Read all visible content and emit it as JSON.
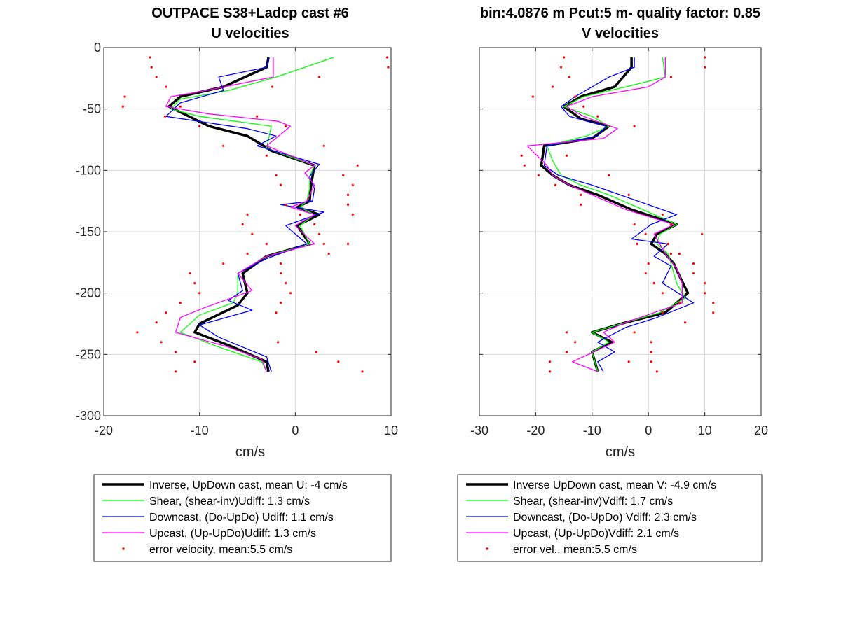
{
  "figure": {
    "left_title_line1": "OUTPACE S38+Ladcp cast #6",
    "right_title_line1": "bin:4.0876 m  Pcut:5 m- quality factor:  0.85"
  },
  "colors": {
    "inverse": "#000000",
    "shear": "#00ff00",
    "downcast": "#0000ff",
    "upcast": "#ff00ff",
    "error": "#ff0000",
    "grid": "#d9d9d9"
  },
  "chart_data": [
    {
      "type": "line",
      "title": "U velocities",
      "xlabel": "cm/s",
      "ylabel": "",
      "xlim": [
        -20,
        10
      ],
      "ylim": [
        -300,
        0
      ],
      "xticks": [
        -20,
        -10,
        0,
        10
      ],
      "yticks": [
        -300,
        -250,
        -200,
        -150,
        -100,
        -50,
        0
      ],
      "grid": true,
      "legend_position": "below",
      "series": [
        {
          "name": "Inverse, UpDown cast, mean U:  -4 cm/s",
          "role": "inverse",
          "x": [
            -2.8,
            -3.0,
            -7.5,
            -12.0,
            -13.2,
            -9.0,
            -5.0,
            -3.3,
            -2.5,
            2.0,
            1.8,
            1.6,
            1.5,
            0.2,
            2.5,
            0.2,
            1.5,
            -3.0,
            -5.5,
            -5.0,
            -6.0,
            -10.0,
            -10.5,
            -6.5,
            -3.0,
            -2.8
          ],
          "y": [
            -8,
            -16,
            -32,
            -40,
            -48,
            -64,
            -72,
            -80,
            -84,
            -96,
            -105,
            -115,
            -125,
            -130,
            -136,
            -145,
            -160,
            -170,
            -184,
            -200,
            -210,
            -225,
            -232,
            -244,
            -256,
            -264
          ]
        },
        {
          "name": "Shear, (shear-inv)Udiff:  1.3 cm/s",
          "role": "shear",
          "x": [
            4.0,
            1.0,
            -2.0,
            -7.0,
            -12.0,
            -13.0,
            -10.0,
            -2.5,
            -3.0,
            2.0,
            1.5,
            1.5,
            1.2,
            0.5,
            2.0,
            0.5,
            1.5,
            -3.0,
            -6.0,
            -6.0,
            -6.5,
            -10.0,
            -12.0,
            -8.0,
            -3.5,
            -3.0
          ],
          "y": [
            -8,
            -16,
            -24,
            -35,
            -42,
            -50,
            -56,
            -64,
            -82,
            -96,
            -105,
            -115,
            -125,
            -130,
            -136,
            -145,
            -160,
            -170,
            -184,
            -200,
            -208,
            -218,
            -232,
            -244,
            -256,
            -264
          ]
        },
        {
          "name": "Downcast, (Do-UpDo) Udiff:  1.1 cm/s",
          "role": "downcast",
          "x": [
            -2.8,
            -3.0,
            -8.0,
            -7.5,
            -12.0,
            -13.5,
            -5.0,
            -2.0,
            -4.0,
            2.5,
            1.5,
            2.0,
            1.8,
            -1.5,
            3.0,
            -1.0,
            1.2,
            -3.0,
            -6.0,
            -5.5,
            -7.0,
            -4.5,
            -10.0,
            -8.0,
            -3.0,
            -2.5
          ],
          "y": [
            -8,
            -16,
            -24,
            -35,
            -45,
            -56,
            -66,
            -72,
            -80,
            -95,
            -105,
            -115,
            -125,
            -128,
            -134,
            -145,
            -160,
            -172,
            -184,
            -198,
            -206,
            -214,
            -226,
            -236,
            -252,
            -264
          ]
        },
        {
          "name": "Upcast, (Up-UpDo)Udiff:  1.3 cm/s",
          "role": "upcast",
          "x": [
            -2.3,
            -2.3,
            -10.0,
            -13.0,
            -13.5,
            -9.0,
            -1.8,
            -0.5,
            -3.0,
            2.0,
            1.0,
            2.0,
            1.2,
            -0.5,
            2.0,
            0.0,
            2.0,
            -3.0,
            -6.0,
            -4.5,
            -9.5,
            -12.0,
            -12.5,
            -7.0,
            -3.5,
            -3.0
          ],
          "y": [
            -8,
            -24,
            -36,
            -40,
            -48,
            -54,
            -60,
            -64,
            -80,
            -96,
            -102,
            -112,
            -125,
            -130,
            -136,
            -145,
            -160,
            -170,
            -184,
            -198,
            -212,
            -220,
            -232,
            -244,
            -254,
            -264
          ]
        },
        {
          "name": "error velocity, mean:5.5 cm/s",
          "role": "error",
          "type": "scatter",
          "x": [
            -15.2,
            9.6,
            -15.0,
            9.7,
            -14.5,
            2.5,
            -13.5,
            -17.8,
            -2.4,
            -18.0,
            -12.0,
            -13.6,
            -4.0,
            -10.0,
            -1.0,
            -7.5,
            3.0,
            -3.0,
            6.5,
            -2.0,
            5.0,
            6.0,
            -1.5,
            5.5,
            -1.0,
            5.5,
            0.5,
            -5.0,
            6.0,
            -5.5,
            2.0,
            2.5,
            -4.5,
            3.0,
            -3.0,
            5.5,
            -5.0,
            3.5,
            -7.5,
            -1.5,
            -11.0,
            -1.5,
            -10.5,
            -1.0,
            -10.0,
            -0.5,
            -12.0,
            -1.5,
            -13.5,
            -2.0,
            -14.5,
            -16.5,
            -14.0,
            -1.8,
            -12.5,
            2.2,
            -10.5,
            4.5,
            -12.5,
            7.0
          ],
          "y": [
            -8,
            -8,
            -16,
            -16,
            -24,
            -24,
            -32,
            -40,
            -32,
            -48,
            -48,
            -56,
            -56,
            -64,
            -64,
            -80,
            -80,
            -88,
            -96,
            -104,
            -104,
            -112,
            -112,
            -120,
            -128,
            -128,
            -136,
            -136,
            -136,
            -144,
            -144,
            -152,
            -152,
            -160,
            -160,
            -160,
            -168,
            -168,
            -176,
            -176,
            -184,
            -184,
            -192,
            -192,
            -200,
            -200,
            -208,
            -208,
            -216,
            -216,
            -224,
            -232,
            -240,
            -240,
            -248,
            -248,
            -256,
            -256,
            -264,
            -264
          ]
        }
      ]
    },
    {
      "type": "line",
      "title": "V velocities",
      "xlabel": "cm/s",
      "ylabel": "",
      "xlim": [
        -30,
        20
      ],
      "ylim": [
        -300,
        0
      ],
      "xticks": [
        -30,
        -20,
        -10,
        0,
        10,
        20
      ],
      "yticks": [
        -300,
        -250,
        -200,
        -150,
        -100,
        -50,
        0
      ],
      "grid": true,
      "legend_position": "below",
      "series": [
        {
          "name": "Inverse UpDown cast, mean V:  -4.9 cm/s",
          "role": "inverse",
          "x": [
            -3.0,
            -3.0,
            -6.0,
            -12.0,
            -15.0,
            -12.0,
            -7.0,
            -10.0,
            -18.5,
            -19.0,
            -17.0,
            -14.0,
            -9.0,
            -3.0,
            5.0,
            1.5,
            0.5,
            3.0,
            4.5,
            5.5,
            7.0,
            3.0,
            -4.0,
            -10.0,
            -6.5,
            -10.0,
            -9.0
          ],
          "y": [
            -8,
            -16,
            -32,
            -40,
            -48,
            -58,
            -64,
            -74,
            -80,
            -96,
            -104,
            -112,
            -120,
            -132,
            -144,
            -152,
            -160,
            -168,
            -176,
            -186,
            -200,
            -216,
            -224,
            -232,
            -240,
            -248,
            -264
          ]
        },
        {
          "name": "Shear, (shear-inv)Vdiff:  1.7 cm/s",
          "role": "shear",
          "x": [
            2.5,
            3.0,
            -4.0,
            -11.5,
            -15.0,
            -10.0,
            -7.0,
            -11.0,
            -18.0,
            -17.0,
            -15.5,
            -12.0,
            -7.0,
            -1.0,
            5.0,
            2.0,
            1.5,
            3.5,
            4.0,
            5.0,
            6.5,
            2.0,
            -4.0,
            -10.0,
            -7.0,
            -10.0,
            -9.0
          ],
          "y": [
            -8,
            -24,
            -32,
            -40,
            -48,
            -56,
            -64,
            -72,
            -80,
            -92,
            -104,
            -112,
            -120,
            -132,
            -144,
            -152,
            -160,
            -168,
            -176,
            -192,
            -204,
            -216,
            -224,
            -232,
            -240,
            -248,
            -264
          ]
        },
        {
          "name": "Downcast, (Do-UpDo) Vdiff:  2.3 cm/s",
          "role": "downcast",
          "x": [
            -2.5,
            -2.5,
            -7.0,
            -13.0,
            -15.5,
            -14.0,
            -7.5,
            -9.0,
            -18.0,
            -18.5,
            -16.0,
            -10.0,
            -5.0,
            5.0,
            0.5,
            -3.0,
            3.5,
            1.0,
            4.0,
            2.5,
            8.0,
            1.5,
            -4.0,
            -9.0,
            -6.0,
            -9.0,
            -8.0
          ],
          "y": [
            -8,
            -16,
            -24,
            -40,
            -48,
            -56,
            -64,
            -72,
            -80,
            -96,
            -104,
            -112,
            -120,
            -136,
            -144,
            -156,
            -160,
            -170,
            -178,
            -192,
            -208,
            -220,
            -228,
            -240,
            -248,
            -256,
            -264
          ]
        },
        {
          "name": "Upcast, (Up-UpDo)Vdiff:  2.1 cm/s",
          "role": "upcast",
          "x": [
            3.0,
            3.0,
            0.0,
            -10.0,
            -14.5,
            -11.5,
            -5.5,
            -8.0,
            -21.5,
            -18.0,
            -17.0,
            -14.0,
            -10.0,
            -4.0,
            4.5,
            1.0,
            2.0,
            3.0,
            5.0,
            6.0,
            6.0,
            1.0,
            -4.0,
            -8.0,
            -6.0,
            -13.5,
            -9.0
          ],
          "y": [
            -8,
            -24,
            -32,
            -40,
            -48,
            -56,
            -66,
            -74,
            -80,
            -96,
            -104,
            -112,
            -120,
            -132,
            -144,
            -152,
            -160,
            -168,
            -180,
            -192,
            -208,
            -216,
            -224,
            -232,
            -240,
            -256,
            -264
          ]
        },
        {
          "name": "error vel., mean:5.5 cm/s",
          "role": "error",
          "type": "scatter",
          "x": [
            -15.0,
            10.0,
            -15.5,
            10.0,
            -14.0,
            4.0,
            -17.0,
            -20.5,
            -13.0,
            -11.5,
            -9.0,
            -2.5,
            -22.5,
            -14.5,
            -22.0,
            -7.0,
            -19.5,
            -16.5,
            -12.0,
            -3.5,
            -12.0,
            2.5,
            -2.5,
            4.0,
            -0.5,
            9.5,
            3.5,
            -2.0,
            5.5,
            4.0,
            0.0,
            8.0,
            -0.5,
            8.0,
            1.0,
            10.0,
            2.5,
            10.0,
            11.5,
            5.5,
            2.5,
            11.5,
            6.5,
            -2.5,
            -14.5,
            0.5,
            -13.0,
            0.5,
            -14.5,
            0.5,
            -17.5,
            -3.5,
            -17.5,
            1.5
          ],
          "y": [
            -8,
            -8,
            -16,
            -16,
            -24,
            -24,
            -32,
            -40,
            -40,
            -48,
            -56,
            -64,
            -88,
            -88,
            -96,
            -104,
            -104,
            -112,
            -120,
            -120,
            -128,
            -136,
            -144,
            -144,
            -152,
            -152,
            -160,
            -160,
            -168,
            -168,
            -176,
            -176,
            -184,
            -184,
            -192,
            -192,
            -200,
            -200,
            -208,
            -208,
            -216,
            -216,
            -224,
            -232,
            -232,
            -240,
            -240,
            -248,
            -248,
            -256,
            -256,
            -256,
            -264,
            -264
          ]
        }
      ]
    }
  ]
}
